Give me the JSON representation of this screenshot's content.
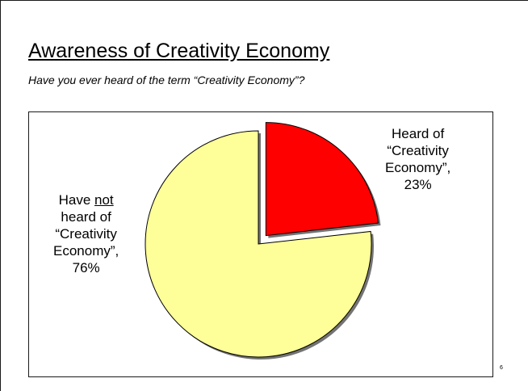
{
  "slide": {
    "title": "Awareness of Creativity Economy",
    "subtitle": "Have you ever heard of the term “Creativity Economy”?",
    "page_number": "6"
  },
  "colors": {
    "heard": "#ff0000",
    "not_heard": "#ffff99",
    "outline": "#000000"
  },
  "chart_data": {
    "type": "pie",
    "title": "",
    "slices": [
      {
        "key": "heard",
        "label_lines": [
          "Heard of",
          "“Creativity",
          "Economy”,",
          "23%"
        ],
        "value": 23,
        "color": "#ff0000",
        "exploded": true
      },
      {
        "key": "not_heard",
        "label_pre": "Have ",
        "label_emph": "not",
        "label_lines": [
          "heard of",
          "“Creativity",
          "Economy”,",
          "76%"
        ],
        "value": 76,
        "color": "#ffff99",
        "exploded": false
      }
    ]
  }
}
